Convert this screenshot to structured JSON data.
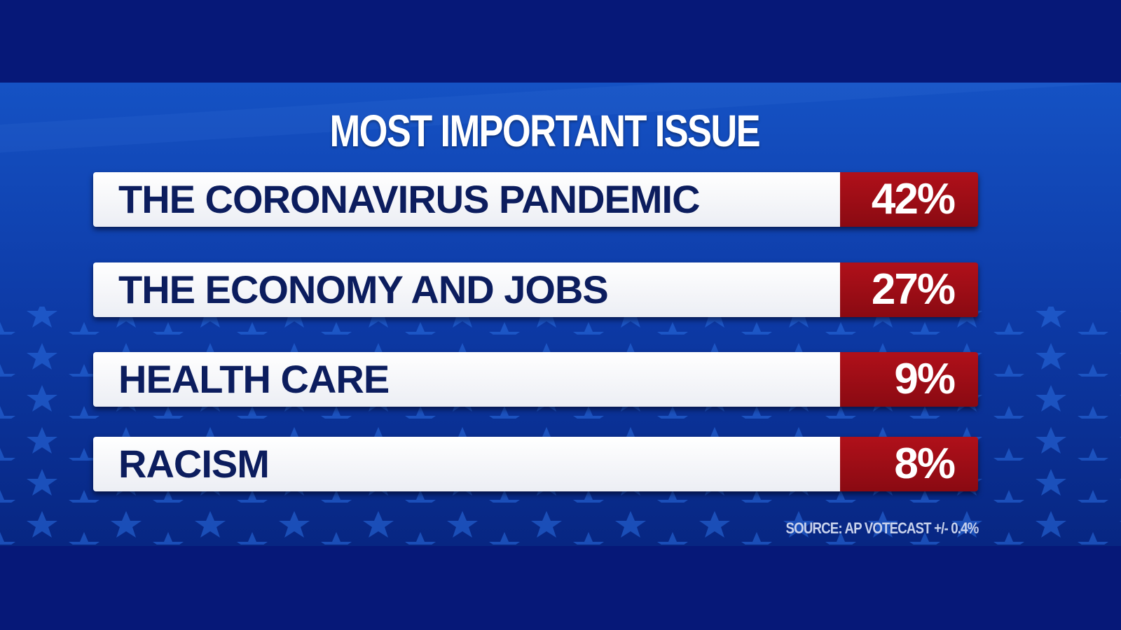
{
  "title": "MOST IMPORTANT ISSUE",
  "rows": [
    {
      "issue": "THE CORONAVIRUS PANDEMIC",
      "percent": "42%"
    },
    {
      "issue": "THE ECONOMY AND JOBS",
      "percent": "27%"
    },
    {
      "issue": "HEALTH CARE",
      "percent": "9%"
    },
    {
      "issue": "RACISM",
      "percent": "8%"
    }
  ],
  "source": "SOURCE: AP VOTECAST +/- 0.4%"
}
